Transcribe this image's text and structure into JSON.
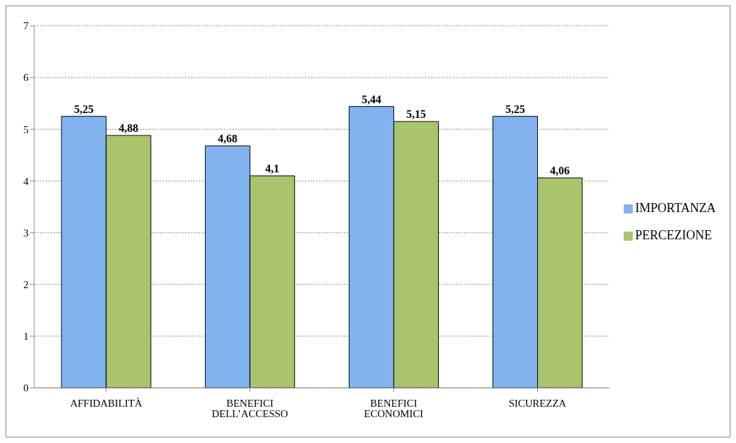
{
  "chart_data": {
    "type": "bar",
    "categories": [
      "AFFIDABILITÀ",
      "BENEFICI DELL’ACCESSO",
      "BENEFICI ECONOMICI",
      "SICUREZZA"
    ],
    "series": [
      {
        "name": "IMPORTANZA",
        "color": "#82b3ef",
        "values": [
          5.25,
          4.68,
          5.44,
          5.25
        ],
        "value_labels": [
          "5,25",
          "4,68",
          "5,44",
          "5,25"
        ]
      },
      {
        "name": "PERCEZIONE",
        "color": "#a9c46c",
        "values": [
          4.88,
          4.1,
          5.15,
          4.06
        ],
        "value_labels": [
          "4,88",
          "4,1",
          "5,15",
          "4,06"
        ]
      }
    ],
    "ylim": [
      0,
      7
    ],
    "yticks": [
      0,
      1,
      2,
      3,
      4,
      5,
      6,
      7
    ],
    "grid": "y",
    "legend": "right"
  }
}
